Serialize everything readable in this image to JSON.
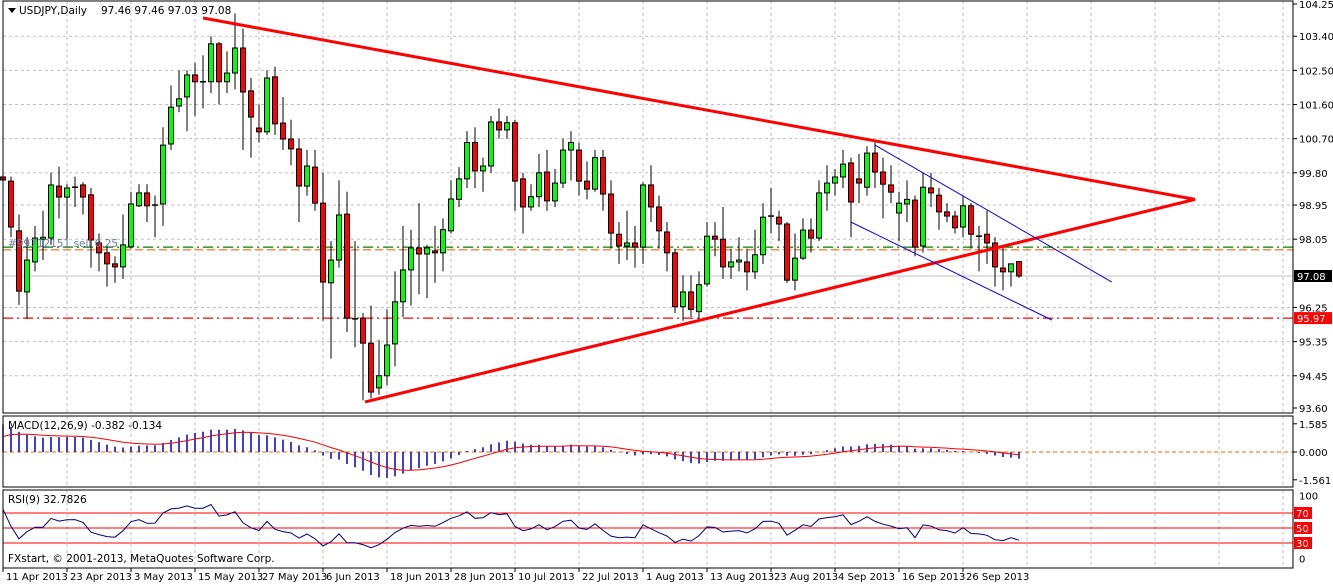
{
  "header": {
    "symbol_label": "USDJPY,Daily",
    "ohlc": "97.46 97.46 97.03 97.08"
  },
  "order_label": "#99712151 sell 0.25",
  "copyright": "FXstart, © 2001-2013, MetaQuotes Software Corp.",
  "colors": {
    "bull": "#00FF00",
    "bear": "#FF0000",
    "trendline": "#FF0000",
    "channel": "#0000FF",
    "grid": "#C0C0C0",
    "macd_hist": "#0000CC",
    "macd_signal": "#FF0000",
    "rsi_line": "#000080",
    "order_line_tp": "#008000",
    "order_line_entry": "#FF6600"
  },
  "price_axis": {
    "labels": [
      "104.25",
      "103.40",
      "102.50",
      "101.60",
      "100.70",
      "99.80",
      "98.95",
      "98.05",
      "96.25",
      "95.35",
      "94.45",
      "93.60"
    ],
    "bid_label": "97.08",
    "level_label": "95.97"
  },
  "macd": {
    "title": "MACD(12,26,9) -0.382 -0.134",
    "labels": [
      "1.585",
      "0.000",
      "-1.561"
    ]
  },
  "rsi": {
    "title": "RSI(9) 32.7826",
    "labels": [
      "100",
      "0"
    ],
    "level_labels": [
      "70",
      "50",
      "30"
    ]
  },
  "chart_data": {
    "type": "candlestick",
    "symbol": "USDJPY",
    "timeframe": "Daily",
    "ylim": [
      93.6,
      104.25
    ],
    "x_labels": [
      "11 Apr 2013",
      "23 Apr 2013",
      "3 May 2013",
      "15 May 2013",
      "27 May 2013",
      "6 Jun 2013",
      "18 Jun 2013",
      "28 Jun 2013",
      "10 Jul 2013",
      "22 Jul 2013",
      "1 Aug 2013",
      "13 Aug 2013",
      "23 Aug 2013",
      "4 Sep 2013",
      "16 Sep 2013",
      "26 Sep 2013"
    ],
    "bars_per_label": 8,
    "ohlc": [
      [
        99.69,
        99.8,
        98.5,
        99.61
      ],
      [
        99.58,
        99.7,
        98.1,
        98.37
      ],
      [
        98.27,
        98.7,
        96.32,
        96.68
      ],
      [
        96.66,
        98.1,
        95.95,
        97.5
      ],
      [
        97.45,
        98.4,
        97.2,
        98.08
      ],
      [
        98.05,
        98.8,
        97.5,
        98.1
      ],
      [
        98.08,
        99.8,
        97.9,
        99.48
      ],
      [
        99.45,
        99.96,
        98.6,
        99.16
      ],
      [
        99.16,
        99.5,
        98.0,
        99.4
      ],
      [
        99.42,
        99.7,
        98.9,
        99.42
      ],
      [
        99.48,
        99.55,
        98.7,
        99.16
      ],
      [
        99.22,
        99.4,
        97.3,
        98.03
      ],
      [
        97.95,
        98.2,
        97.2,
        97.69
      ],
      [
        97.69,
        97.9,
        96.8,
        97.4
      ],
      [
        97.4,
        97.6,
        96.9,
        97.32
      ],
      [
        97.32,
        98.7,
        97.0,
        97.9
      ],
      [
        97.85,
        99.3,
        97.8,
        98.98
      ],
      [
        98.93,
        99.5,
        98.9,
        99.27
      ],
      [
        99.27,
        99.5,
        98.5,
        98.93
      ],
      [
        98.95,
        99.2,
        98.1,
        98.95
      ],
      [
        98.98,
        101.0,
        98.4,
        100.53
      ],
      [
        100.56,
        102.1,
        100.4,
        101.53
      ],
      [
        101.56,
        102.5,
        101.4,
        101.75
      ],
      [
        101.8,
        102.5,
        100.9,
        102.38
      ],
      [
        102.38,
        102.7,
        101.3,
        102.2
      ],
      [
        102.2,
        102.9,
        101.5,
        102.2
      ],
      [
        102.2,
        103.4,
        101.9,
        103.2
      ],
      [
        103.2,
        103.25,
        101.6,
        102.2
      ],
      [
        102.2,
        103.0,
        101.9,
        102.43
      ],
      [
        102.43,
        104.0,
        102.0,
        103.09
      ],
      [
        103.09,
        103.6,
        100.4,
        101.93
      ],
      [
        101.96,
        102.3,
        100.2,
        101.27
      ],
      [
        100.98,
        101.6,
        100.6,
        100.88
      ],
      [
        100.88,
        102.5,
        100.8,
        102.3
      ],
      [
        102.33,
        102.6,
        100.8,
        101.09
      ],
      [
        101.11,
        101.8,
        100.4,
        100.69
      ],
      [
        100.69,
        101.2,
        100.0,
        100.43
      ],
      [
        100.43,
        100.7,
        98.5,
        99.45
      ],
      [
        99.45,
        100.4,
        99.2,
        99.98
      ],
      [
        99.95,
        100.4,
        98.8,
        99.0
      ],
      [
        99.0,
        99.8,
        95.9,
        96.92
      ],
      [
        96.9,
        98.0,
        94.9,
        97.5
      ],
      [
        97.5,
        99.6,
        97.3,
        98.69
      ],
      [
        98.71,
        99.3,
        95.6,
        95.97
      ],
      [
        95.95,
        98.0,
        95.2,
        95.95
      ],
      [
        95.97,
        96.1,
        93.8,
        95.31
      ],
      [
        95.31,
        96.3,
        93.85,
        94.02
      ],
      [
        94.13,
        95.4,
        93.95,
        94.45
      ],
      [
        94.45,
        96.2,
        94.2,
        95.26
      ],
      [
        95.29,
        97.2,
        94.7,
        96.4
      ],
      [
        96.4,
        98.4,
        96.0,
        97.24
      ],
      [
        97.24,
        98.3,
        96.3,
        97.82
      ],
      [
        97.82,
        99.0,
        96.6,
        97.66
      ],
      [
        97.66,
        97.9,
        96.5,
        97.82
      ],
      [
        97.74,
        98.4,
        96.9,
        97.69
      ],
      [
        97.69,
        98.6,
        97.2,
        98.3
      ],
      [
        98.27,
        99.6,
        98.2,
        99.11
      ],
      [
        99.1,
        99.95,
        98.9,
        99.64
      ],
      [
        99.64,
        100.9,
        99.4,
        100.6
      ],
      [
        100.6,
        101.0,
        99.4,
        99.85
      ],
      [
        99.85,
        100.2,
        99.3,
        99.98
      ],
      [
        99.98,
        101.3,
        99.8,
        101.14
      ],
      [
        101.14,
        101.5,
        100.7,
        100.93
      ],
      [
        100.93,
        101.3,
        100.7,
        101.12
      ],
      [
        101.12,
        101.2,
        98.8,
        99.58
      ],
      [
        99.64,
        99.8,
        98.2,
        98.9
      ],
      [
        98.9,
        99.5,
        98.8,
        99.17
      ],
      [
        99.17,
        100.3,
        98.9,
        99.8
      ],
      [
        99.82,
        100.4,
        98.8,
        99.06
      ],
      [
        99.06,
        99.9,
        98.9,
        99.53
      ],
      [
        99.53,
        100.7,
        99.4,
        100.4
      ],
      [
        100.4,
        100.9,
        99.6,
        100.6
      ],
      [
        100.4,
        100.6,
        99.2,
        99.58
      ],
      [
        99.58,
        100.1,
        99.1,
        99.37
      ],
      [
        99.37,
        100.4,
        99.3,
        100.2
      ],
      [
        100.2,
        100.4,
        98.8,
        99.24
      ],
      [
        99.24,
        99.6,
        97.8,
        98.21
      ],
      [
        98.18,
        98.5,
        97.4,
        97.87
      ],
      [
        97.87,
        98.8,
        97.5,
        97.95
      ],
      [
        97.95,
        98.4,
        97.3,
        97.84
      ],
      [
        97.84,
        99.55,
        97.4,
        99.48
      ],
      [
        99.48,
        100.0,
        98.5,
        98.9
      ],
      [
        98.9,
        99.2,
        97.8,
        98.27
      ],
      [
        98.24,
        98.5,
        97.2,
        97.69
      ],
      [
        97.69,
        97.8,
        96.1,
        96.27
      ],
      [
        96.27,
        97.1,
        95.9,
        96.66
      ],
      [
        96.66,
        97.1,
        96.0,
        96.2
      ],
      [
        96.14,
        97.2,
        95.9,
        96.85
      ],
      [
        96.87,
        98.5,
        96.8,
        98.13
      ],
      [
        98.13,
        98.5,
        97.6,
        98.05
      ],
      [
        98.05,
        98.9,
        97.0,
        97.32
      ],
      [
        97.32,
        97.8,
        97.0,
        97.45
      ],
      [
        97.45,
        98.1,
        97.2,
        97.5
      ],
      [
        97.45,
        97.8,
        96.7,
        97.19
      ],
      [
        97.19,
        98.3,
        97.0,
        97.64
      ],
      [
        97.64,
        99.0,
        97.4,
        98.63
      ],
      [
        98.66,
        99.4,
        98.2,
        98.66
      ],
      [
        98.63,
        98.8,
        98.0,
        98.45
      ],
      [
        98.45,
        98.5,
        96.9,
        96.97
      ],
      [
        96.97,
        98.2,
        96.7,
        97.55
      ],
      [
        97.55,
        98.6,
        97.5,
        98.29
      ],
      [
        98.29,
        98.6,
        97.7,
        98.08
      ],
      [
        98.08,
        99.6,
        98.0,
        99.27
      ],
      [
        99.27,
        100.0,
        98.8,
        99.53
      ],
      [
        99.53,
        99.9,
        99.2,
        99.69
      ],
      [
        99.69,
        100.4,
        99.4,
        100.03
      ],
      [
        100.06,
        100.2,
        98.1,
        99.03
      ],
      [
        99.64,
        100.3,
        99.0,
        99.53
      ],
      [
        99.42,
        100.5,
        99.2,
        100.32
      ],
      [
        100.32,
        100.6,
        99.4,
        99.82
      ],
      [
        99.82,
        100.2,
        98.6,
        99.5
      ],
      [
        99.48,
        100.0,
        99.0,
        99.29
      ],
      [
        98.74,
        99.3,
        98.0,
        99.0
      ],
      [
        98.98,
        99.6,
        98.5,
        99.1
      ],
      [
        99.08,
        99.2,
        97.6,
        97.84
      ],
      [
        97.87,
        99.8,
        97.7,
        99.42
      ],
      [
        99.4,
        99.8,
        98.9,
        99.27
      ],
      [
        99.21,
        99.4,
        98.3,
        98.77
      ],
      [
        98.77,
        99.0,
        98.5,
        98.66
      ],
      [
        98.66,
        98.8,
        98.2,
        98.35
      ],
      [
        98.37,
        99.2,
        98.1,
        98.93
      ],
      [
        98.93,
        99.0,
        97.8,
        98.18
      ],
      [
        98.13,
        98.4,
        97.2,
        98.13
      ],
      [
        98.18,
        98.8,
        97.4,
        97.95
      ],
      [
        97.95,
        98.1,
        96.8,
        97.32
      ],
      [
        97.29,
        97.9,
        96.7,
        97.19
      ],
      [
        97.19,
        97.4,
        96.8,
        97.4
      ],
      [
        97.46,
        97.46,
        97.03,
        97.08
      ]
    ],
    "trendlines": [
      {
        "name": "triangle-upper",
        "color": "#FF0000",
        "from": {
          "bar": 26,
          "price": 103.88
        },
        "to": {
          "bar": 150,
          "price": 99.1
        }
      },
      {
        "name": "triangle-lower",
        "color": "#FF0000",
        "from": {
          "bar": 46.25,
          "price": 93.76
        },
        "to": {
          "bar": 150,
          "price": 99.1
        }
      },
      {
        "name": "channel-upper",
        "color": "#0000FF",
        "from": {
          "bar": 110,
          "price": 100.53
        },
        "to": {
          "bar": 139.6,
          "price": 96.92
        }
      },
      {
        "name": "channel-lower",
        "color": "#0000FF",
        "from": {
          "bar": 107,
          "price": 98.5
        },
        "to": {
          "bar": 132.1,
          "price": 95.92
        }
      }
    ],
    "horizontal_lines": [
      {
        "name": "bid-line",
        "price": 97.08,
        "color": "#C0C0C0",
        "style": "solid"
      },
      {
        "name": "level-line",
        "price": 95.97,
        "color": "#FF0000",
        "style": "dashdot"
      },
      {
        "name": "order-tp-line",
        "price": 97.84,
        "color": "#008000",
        "style": "dashdot"
      },
      {
        "name": "order-entry-line",
        "price": 97.77,
        "color": "#FF6600",
        "style": "dash"
      }
    ],
    "macd": {
      "fast": 12,
      "slow": 26,
      "signal": 9,
      "ylim": [
        -1.561,
        1.585
      ],
      "seed_fast": 98.7,
      "seed_slow": 97.1,
      "seed_signal": 0.7,
      "last_main": -0.382,
      "last_signal": -0.134
    },
    "rsi": {
      "period": 9,
      "ylim": [
        0,
        100
      ],
      "levels": [
        70,
        50,
        30
      ],
      "seed_avg_gain": 0.3,
      "seed_avg_loss": 0.09,
      "last": 32.7826
    }
  }
}
